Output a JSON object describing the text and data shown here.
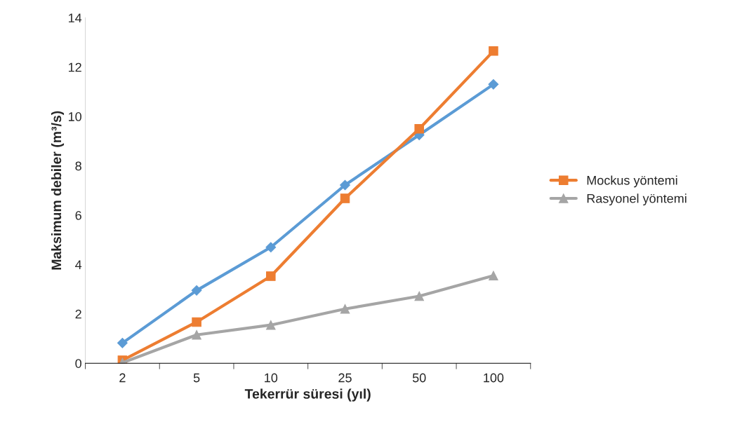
{
  "chart_data": {
    "type": "line",
    "xlabel": "Tekerrür süresi (yıl)",
    "ylabel": "Maksimum debiler (m³/s)",
    "categories": [
      "2",
      "5",
      "10",
      "25",
      "50",
      "100"
    ],
    "series": [
      {
        "color": "#5b9bd5",
        "marker": "diamond",
        "values": [
          0.82,
          2.95,
          4.7,
          7.22,
          9.25,
          11.3
        ]
      },
      {
        "name": "Mockus yöntemi",
        "color": "#ed7d31",
        "marker": "square",
        "values": [
          0.12,
          1.67,
          3.53,
          6.68,
          9.5,
          12.65
        ]
      },
      {
        "name": "Rasyonel yöntemi",
        "color": "#a5a5a5",
        "marker": "triangle",
        "values": [
          0.02,
          1.15,
          1.55,
          2.2,
          2.72,
          3.55
        ]
      }
    ],
    "ylim": [
      0,
      14
    ],
    "yticks": [
      0,
      2,
      4,
      6,
      8,
      10,
      12,
      14
    ],
    "grid": false,
    "legend": "right"
  }
}
